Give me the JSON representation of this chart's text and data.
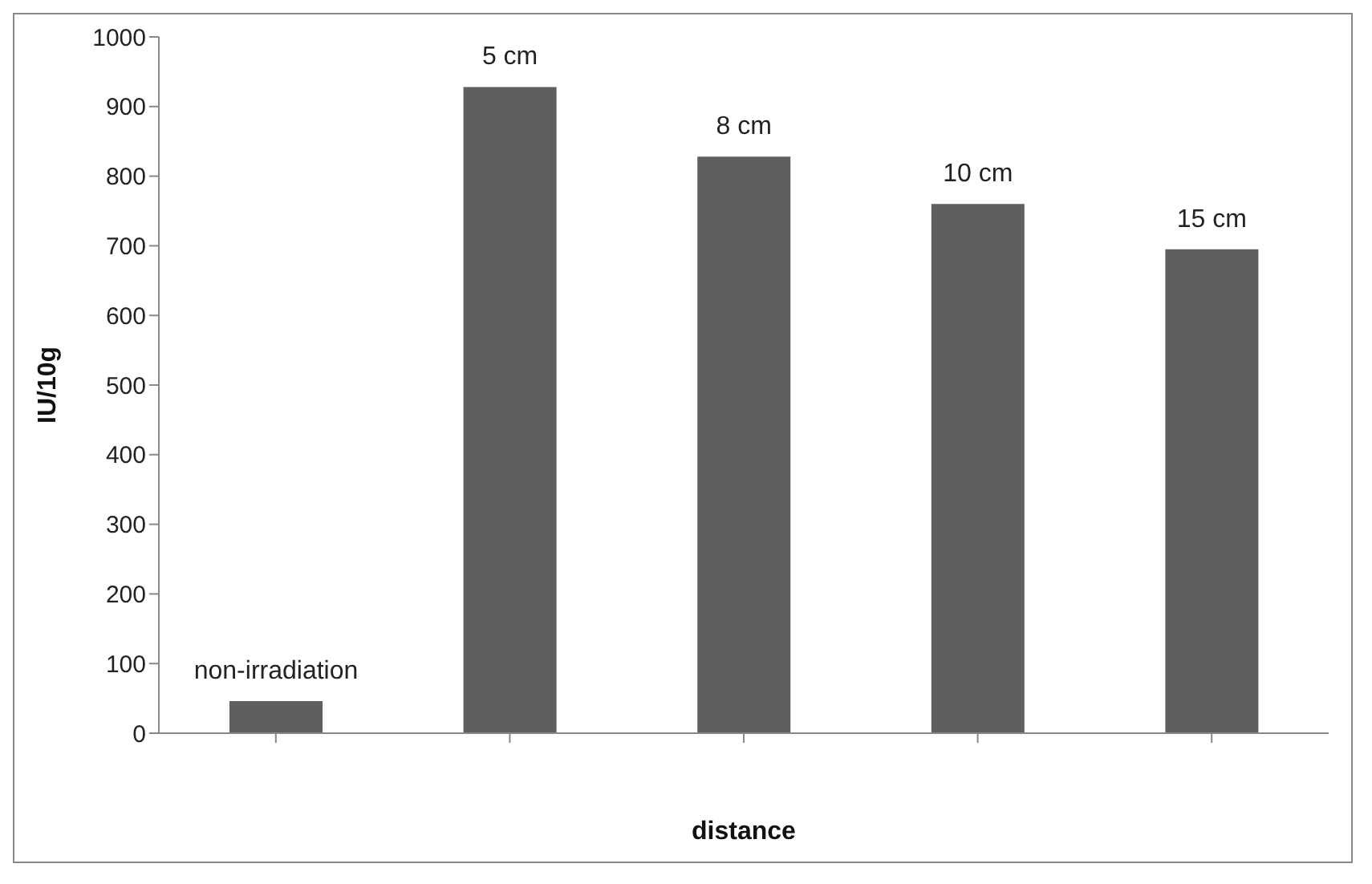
{
  "chart_data": {
    "type": "bar",
    "xlabel": "distance",
    "ylabel": "IU/10g",
    "categories": [
      "non-irradiation",
      "5 cm",
      "8 cm",
      "10 cm",
      "15 cm"
    ],
    "values": [
      46,
      928,
      828,
      760,
      695
    ],
    "color": "#5f5f5f",
    "ylim": [
      0,
      1000
    ],
    "yticks": [
      0,
      100,
      200,
      300,
      400,
      500,
      600,
      700,
      800,
      900,
      1000
    ],
    "grid": false,
    "tick_labels": "y"
  }
}
